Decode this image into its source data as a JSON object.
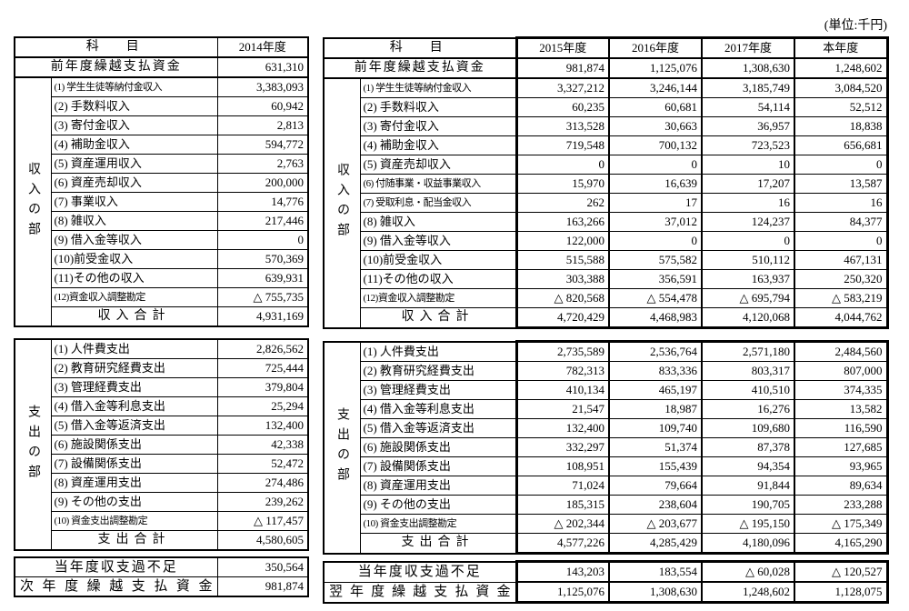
{
  "unit_label": "(単位:千円)",
  "left_table": {
    "subject_header": "科　目",
    "year_header": "2014年度",
    "carryover": {
      "label": "前年度繰越支払資金",
      "value": "631,310"
    },
    "income": {
      "section_label": "収入の部",
      "rows": [
        {
          "label": "(1) 学生生徒等納付金収入",
          "value": "3,383,093",
          "small": true
        },
        {
          "label": "(2) 手数料収入",
          "value": "60,942"
        },
        {
          "label": "(3) 寄付金収入",
          "value": "2,813"
        },
        {
          "label": "(4) 補助金収入",
          "value": "594,772"
        },
        {
          "label": "(5) 資産運用収入",
          "value": "2,763"
        },
        {
          "label": "(6) 資産売却収入",
          "value": "200,000"
        },
        {
          "label": "(7) 事業収入",
          "value": "14,776"
        },
        {
          "label": "(8) 雑収入",
          "value": "217,446"
        },
        {
          "label": "(9) 借入金等収入",
          "value": "0"
        },
        {
          "label": "(10)前受金収入",
          "value": "570,369"
        },
        {
          "label": "(11)その他の収入",
          "value": "639,931"
        },
        {
          "label": "(12)資金収入調整勘定",
          "value": "△ 755,735",
          "small": true
        }
      ],
      "total_label": "収入合計",
      "total": "4,931,169"
    },
    "expense": {
      "section_label": "支出の部",
      "rows": [
        {
          "label": "(1) 人件費支出",
          "value": "2,826,562"
        },
        {
          "label": "(2) 教育研究経費支出",
          "value": "725,444"
        },
        {
          "label": "(3) 管理経費支出",
          "value": "379,804"
        },
        {
          "label": "(4) 借入金等利息支出",
          "value": "25,294"
        },
        {
          "label": "(5) 借入金等返済支出",
          "value": "132,400"
        },
        {
          "label": "(6) 施設関係支出",
          "value": "42,338"
        },
        {
          "label": "(7) 設備関係支出",
          "value": "52,472"
        },
        {
          "label": "(8) 資産運用支出",
          "value": "274,486"
        },
        {
          "label": "(9) その他の支出",
          "value": "239,262"
        },
        {
          "label": "(10) 資金支出調整勘定",
          "value": "△ 117,457",
          "small": true
        }
      ],
      "total_label": "支出合計",
      "total": "4,580,605"
    },
    "balance": {
      "label": "当年度収支過不足",
      "value": "350,564"
    },
    "next_carryover": {
      "label": "次年度繰越支払資金",
      "value": "981,874"
    }
  },
  "right_table": {
    "subject_header": "科　目",
    "year_headers": [
      "2015年度",
      "2016年度",
      "2017年度",
      "本年度"
    ],
    "carryover": {
      "label": "前年度繰越支払資金",
      "values": [
        "981,874",
        "1,125,076",
        "1,308,630",
        "1,248,602"
      ]
    },
    "income": {
      "section_label": "収入の部",
      "rows": [
        {
          "label": "(1) 学生生徒等納付金収入",
          "values": [
            "3,327,212",
            "3,246,144",
            "3,185,749",
            "3,084,520"
          ],
          "small": true
        },
        {
          "label": "(2) 手数料収入",
          "values": [
            "60,235",
            "60,681",
            "54,114",
            "52,512"
          ]
        },
        {
          "label": "(3) 寄付金収入",
          "values": [
            "313,528",
            "30,663",
            "36,957",
            "18,838"
          ]
        },
        {
          "label": "(4) 補助金収入",
          "values": [
            "719,548",
            "700,132",
            "723,523",
            "656,681"
          ]
        },
        {
          "label": "(5) 資産売却収入",
          "values": [
            "0",
            "0",
            "10",
            "0"
          ]
        },
        {
          "label": "(6) 付随事業・収益事業収入",
          "values": [
            "15,970",
            "16,639",
            "17,207",
            "13,587"
          ],
          "small": true
        },
        {
          "label": "(7) 受取利息・配当金収入",
          "values": [
            "262",
            "17",
            "16",
            "16"
          ],
          "small": true
        },
        {
          "label": "(8) 雑収入",
          "values": [
            "163,266",
            "37,012",
            "124,237",
            "84,377"
          ]
        },
        {
          "label": "(9) 借入金等収入",
          "values": [
            "122,000",
            "0",
            "0",
            "0"
          ]
        },
        {
          "label": "(10)前受金収入",
          "values": [
            "515,588",
            "575,582",
            "510,112",
            "467,131"
          ]
        },
        {
          "label": "(11)その他の収入",
          "values": [
            "303,388",
            "356,591",
            "163,937",
            "250,320"
          ]
        },
        {
          "label": "(12)資金収入調整勘定",
          "values": [
            "△ 820,568",
            "△ 554,478",
            "△ 695,794",
            "△ 583,219"
          ],
          "small": true
        }
      ],
      "total_label": "収入合計",
      "totals": [
        "4,720,429",
        "4,468,983",
        "4,120,068",
        "4,044,762"
      ]
    },
    "expense": {
      "section_label": "支出の部",
      "rows": [
        {
          "label": "(1) 人件費支出",
          "values": [
            "2,735,589",
            "2,536,764",
            "2,571,180",
            "2,484,560"
          ]
        },
        {
          "label": "(2) 教育研究経費支出",
          "values": [
            "782,313",
            "833,336",
            "803,317",
            "807,000"
          ]
        },
        {
          "label": "(3) 管理経費支出",
          "values": [
            "410,134",
            "465,197",
            "410,510",
            "374,335"
          ]
        },
        {
          "label": "(4) 借入金等利息支出",
          "values": [
            "21,547",
            "18,987",
            "16,276",
            "13,582"
          ]
        },
        {
          "label": "(5) 借入金等返済支出",
          "values": [
            "132,400",
            "109,740",
            "109,680",
            "116,590"
          ]
        },
        {
          "label": "(6) 施設関係支出",
          "values": [
            "332,297",
            "51,374",
            "87,378",
            "127,685"
          ]
        },
        {
          "label": "(7) 設備関係支出",
          "values": [
            "108,951",
            "155,439",
            "94,354",
            "93,965"
          ]
        },
        {
          "label": "(8) 資産運用支出",
          "values": [
            "71,024",
            "79,664",
            "91,844",
            "89,634"
          ]
        },
        {
          "label": "(9) その他の支出",
          "values": [
            "185,315",
            "238,604",
            "190,705",
            "233,288"
          ]
        },
        {
          "label": "(10) 資金支出調整勘定",
          "values": [
            "△ 202,344",
            "△ 203,677",
            "△ 195,150",
            "△ 175,349"
          ],
          "small": true
        }
      ],
      "total_label": "支出合計",
      "totals": [
        "4,577,226",
        "4,285,429",
        "4,180,096",
        "4,165,290"
      ]
    },
    "balance": {
      "label": "当年度収支過不足",
      "values": [
        "143,203",
        "183,554",
        "△ 60,028",
        "△ 120,527"
      ]
    },
    "next_carryover": {
      "label": "翌年度繰越支払資金",
      "values": [
        "1,125,076",
        "1,308,630",
        "1,248,602",
        "1,128,075"
      ]
    }
  }
}
